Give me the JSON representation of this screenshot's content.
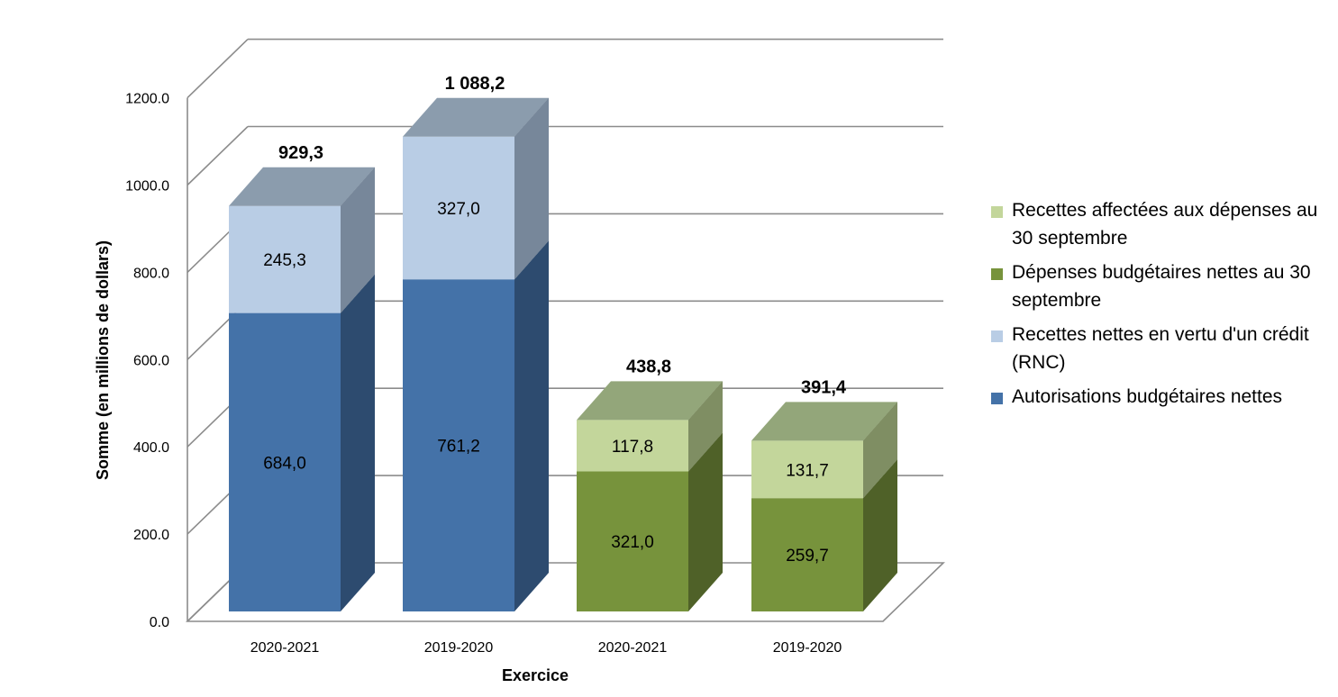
{
  "chart_data": {
    "type": "bar",
    "stacked": true,
    "three_d": true,
    "title": "",
    "xlabel": "Exercice",
    "ylabel": "Somme (en millions de dollars)",
    "ylim": [
      0,
      1200
    ],
    "yticks": [
      "0.0",
      "200.0",
      "400.0",
      "600.0",
      "800.0",
      "1000.0",
      "1200.0"
    ],
    "grid": true,
    "legend_position": "right",
    "categories": [
      "2020-2021",
      "2019-2020",
      "2020-2021",
      "2019-2020"
    ],
    "bars": [
      {
        "category": "2020-2021",
        "total": 929.3,
        "total_label": "929,3",
        "segments": [
          {
            "series": "Autorisations budgétaires nettes",
            "value": 684.0,
            "label": "684,0"
          },
          {
            "series": "Recettes nettes en vertu d'un crédit (RNC)",
            "value": 245.3,
            "label": "245,3"
          }
        ]
      },
      {
        "category": "2019-2020",
        "total": 1088.2,
        "total_label": "1 088,2",
        "segments": [
          {
            "series": "Autorisations budgétaires nettes",
            "value": 761.2,
            "label": "761,2"
          },
          {
            "series": "Recettes nettes en vertu d'un crédit (RNC)",
            "value": 327.0,
            "label": "327,0"
          }
        ]
      },
      {
        "category": "2020-2021",
        "total": 438.8,
        "total_label": "438,8",
        "segments": [
          {
            "series": "Dépenses budgétaires nettes au 30 septembre",
            "value": 321.0,
            "label": "321,0"
          },
          {
            "series": "Recettes affectées aux dépenses au 30 septembre",
            "value": 117.8,
            "label": "117,8"
          }
        ]
      },
      {
        "category": "2019-2020",
        "total": 391.4,
        "total_label": "391,4",
        "segments": [
          {
            "series": "Dépenses budgétaires nettes au 30 septembre",
            "value": 259.7,
            "label": "259,7"
          },
          {
            "series": "Recettes affectées aux dépenses au 30 septembre",
            "value": 131.7,
            "label": "131,7"
          }
        ]
      }
    ],
    "series": [
      {
        "name": "Recettes affectées aux dépenses au 30 septembre",
        "color": "#c3d69b"
      },
      {
        "name": "Dépenses budgétaires nettes au 30 septembre",
        "color": "#77933c"
      },
      {
        "name": "Recettes nettes en vertu d'un crédit (RNC)",
        "color": "#b9cde5"
      },
      {
        "name": "Autorisations budgétaires nettes",
        "color": "#4472a8"
      }
    ],
    "top_colors": {
      "blue": "#8b9cad",
      "green": "#93a67a"
    }
  }
}
